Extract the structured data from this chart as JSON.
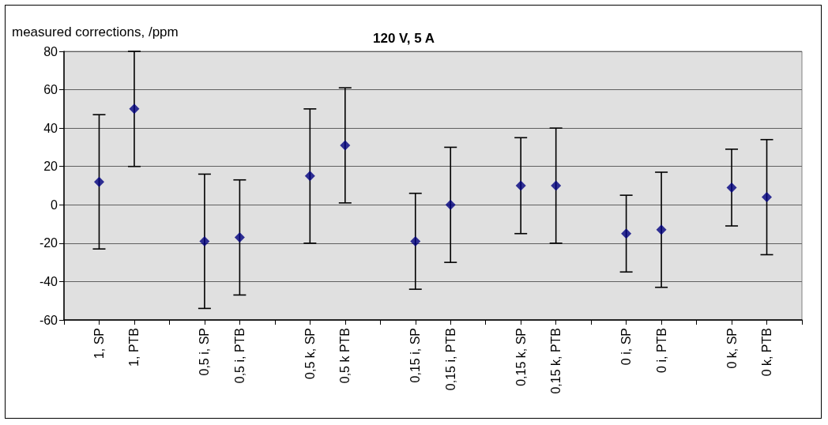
{
  "chart_data": {
    "type": "scatter",
    "title": "120 V, 5 A",
    "ylabel": "measured corrections, /ppm",
    "categories": [
      null,
      "1, SP",
      "1, PTB",
      null,
      "0,5 i, SP",
      "0,5 i, PTB",
      null,
      "0,5 k, SP",
      "0,5 k PTB",
      null,
      "0,15 i, SP",
      "0,15 i, PTB",
      null,
      "0,15 k, SP",
      "0,15 k, PTB",
      null,
      "0 i, SP",
      "0 i, PTB",
      null,
      "0 k, SP",
      "0 k, PTB",
      null
    ],
    "series": [
      {
        "color": "#000080",
        "values": [
          null,
          12,
          50,
          null,
          -19,
          -17,
          null,
          15,
          31,
          null,
          -19,
          0,
          null,
          10,
          10,
          null,
          -15,
          -13,
          null,
          9,
          4,
          null
        ],
        "errors": [
          null,
          35,
          30,
          null,
          35,
          30,
          null,
          35,
          30,
          null,
          25,
          30,
          null,
          25,
          30,
          null,
          20,
          30,
          null,
          20,
          30,
          null
        ]
      }
    ],
    "ylim": [
      -60,
      80
    ],
    "yticks": [
      -60,
      -40,
      -20,
      0,
      20,
      40,
      60,
      80
    ],
    "grid": "y",
    "marker": "diamond"
  }
}
